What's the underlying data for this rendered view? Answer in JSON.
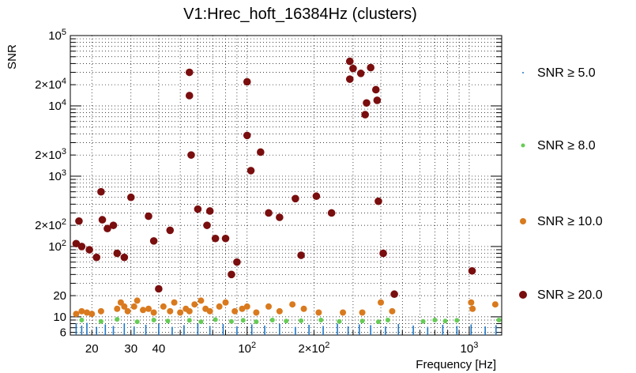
{
  "chart_data": {
    "type": "scatter",
    "title": "V1:Hrec_hoft_16384Hz (clusters)",
    "xlabel": "Frequency [Hz]",
    "ylabel": "SNR",
    "xscale": "log",
    "yscale": "log",
    "xlim": [
      16,
      1400
    ],
    "ylim": [
      5.5,
      100000
    ],
    "grid": true,
    "legend_position": "right",
    "x_ticks": [
      {
        "value": 20,
        "label": "20"
      },
      {
        "value": 30,
        "label": "30"
      },
      {
        "value": 40,
        "label": "40"
      },
      {
        "value": 100,
        "label": "10^2"
      },
      {
        "value": 200,
        "label": "2×10^2"
      },
      {
        "value": 1000,
        "label": "10^3"
      }
    ],
    "y_ticks": [
      {
        "value": 6,
        "label": "6"
      },
      {
        "value": 10,
        "label": "10"
      },
      {
        "value": 20,
        "label": "20"
      },
      {
        "value": 100,
        "label": "10^2"
      },
      {
        "value": 200,
        "label": "2×10^2"
      },
      {
        "value": 1000,
        "label": "10^3"
      },
      {
        "value": 2000,
        "label": "2×10^3"
      },
      {
        "value": 10000,
        "label": "10^4"
      },
      {
        "value": 20000,
        "label": "2×10^4"
      },
      {
        "value": 100000,
        "label": "10^5"
      }
    ],
    "series": [
      {
        "name": "SNR ≥ 5.0",
        "color": "#1f77c8",
        "marker": "dot",
        "points": [
          [
            17,
            8
          ],
          [
            18,
            7.5
          ],
          [
            19,
            8.2
          ],
          [
            21,
            7.2
          ],
          [
            23,
            7.8
          ],
          [
            25,
            7.4
          ],
          [
            28,
            8.1
          ],
          [
            31,
            7.3
          ],
          [
            35,
            7.7
          ],
          [
            40,
            7.9
          ],
          [
            46,
            7.2
          ],
          [
            52,
            7.6
          ],
          [
            60,
            8
          ],
          [
            68,
            7.4
          ],
          [
            78,
            7.9
          ],
          [
            90,
            7.3
          ],
          [
            105,
            7.8
          ],
          [
            120,
            7.5
          ],
          [
            140,
            7.9
          ],
          [
            165,
            7.2
          ],
          [
            190,
            7.7
          ],
          [
            220,
            7.4
          ],
          [
            255,
            8
          ],
          [
            285,
            7.3
          ],
          [
            320,
            7.8
          ],
          [
            360,
            7.6
          ],
          [
            420,
            7.3
          ],
          [
            480,
            7.9
          ],
          [
            560,
            7.5
          ],
          [
            650,
            7.2
          ],
          [
            760,
            7.7
          ],
          [
            880,
            7.4
          ],
          [
            1020,
            7.8
          ],
          [
            1180,
            7.3
          ],
          [
            1320,
            7.6
          ]
        ]
      },
      {
        "name": "SNR ≥ 8.0",
        "color": "#66cc55",
        "marker": "circle",
        "points": [
          [
            18,
            9
          ],
          [
            22,
            8.6
          ],
          [
            26,
            9.2
          ],
          [
            32,
            8.5
          ],
          [
            38,
            9
          ],
          [
            44,
            8.7
          ],
          [
            55,
            8.9
          ],
          [
            62,
            8.5
          ],
          [
            72,
            9.1
          ],
          [
            85,
            8.6
          ],
          [
            96,
            8.9
          ],
          [
            110,
            8.5
          ],
          [
            130,
            9
          ],
          [
            150,
            8.7
          ],
          [
            175,
            8.8
          ],
          [
            215,
            9
          ],
          [
            260,
            8.6
          ],
          [
            330,
            8.7
          ],
          [
            390,
            8.5
          ],
          [
            430,
            9
          ],
          [
            620,
            8.6
          ],
          [
            700,
            9
          ],
          [
            780,
            8.7
          ],
          [
            880,
            8.9
          ],
          [
            1360,
            9
          ]
        ]
      },
      {
        "name": "SNR ≥ 10.0",
        "color": "#d97a1e",
        "marker": "circle",
        "points": [
          [
            17,
            11
          ],
          [
            18,
            12
          ],
          [
            19,
            11.5
          ],
          [
            20,
            11
          ],
          [
            22,
            12
          ],
          [
            26,
            13
          ],
          [
            27,
            16
          ],
          [
            28,
            14
          ],
          [
            29,
            12
          ],
          [
            31,
            14
          ],
          [
            32,
            17
          ],
          [
            34,
            12.5
          ],
          [
            36,
            13
          ],
          [
            38,
            11.5
          ],
          [
            42,
            14
          ],
          [
            45,
            12
          ],
          [
            47,
            16
          ],
          [
            50,
            11.5
          ],
          [
            53,
            13
          ],
          [
            55,
            12
          ],
          [
            58,
            15
          ],
          [
            62,
            17
          ],
          [
            65,
            13
          ],
          [
            68,
            12
          ],
          [
            75,
            14
          ],
          [
            80,
            16
          ],
          [
            88,
            12
          ],
          [
            95,
            13
          ],
          [
            100,
            14
          ],
          [
            110,
            11.5
          ],
          [
            125,
            14
          ],
          [
            140,
            12
          ],
          [
            160,
            15
          ],
          [
            180,
            13
          ],
          [
            210,
            11.5
          ],
          [
            270,
            11.5
          ],
          [
            330,
            11.5
          ],
          [
            400,
            16
          ],
          [
            450,
            12
          ],
          [
            1020,
            16
          ],
          [
            1035,
            13
          ],
          [
            1310,
            15
          ]
        ]
      },
      {
        "name": "SNR ≥ 20.0",
        "color": "#7a0e0e",
        "marker": "circle",
        "points": [
          [
            17,
            110
          ],
          [
            17.5,
            230
          ],
          [
            18,
            100
          ],
          [
            19.5,
            90
          ],
          [
            21,
            70
          ],
          [
            22,
            600
          ],
          [
            22.3,
            240
          ],
          [
            23.5,
            180
          ],
          [
            25,
            200
          ],
          [
            26,
            80
          ],
          [
            28,
            70
          ],
          [
            30,
            500
          ],
          [
            36,
            270
          ],
          [
            38,
            120
          ],
          [
            40,
            25
          ],
          [
            45,
            170
          ],
          [
            55,
            30000
          ],
          [
            55,
            14000
          ],
          [
            56,
            2000
          ],
          [
            60,
            340
          ],
          [
            66,
            200
          ],
          [
            68,
            320
          ],
          [
            72,
            130
          ],
          [
            80,
            130
          ],
          [
            85,
            40
          ],
          [
            90,
            60
          ],
          [
            100,
            3800
          ],
          [
            100,
            22000
          ],
          [
            104,
            1200
          ],
          [
            115,
            2200
          ],
          [
            125,
            300
          ],
          [
            140,
            260
          ],
          [
            165,
            480
          ],
          [
            175,
            75
          ],
          [
            205,
            520
          ],
          [
            240,
            300
          ],
          [
            290,
            43000
          ],
          [
            290,
            24000
          ],
          [
            300,
            34000
          ],
          [
            325,
            29000
          ],
          [
            340,
            7500
          ],
          [
            345,
            11000
          ],
          [
            360,
            35000
          ],
          [
            380,
            17000
          ],
          [
            385,
            12000
          ],
          [
            390,
            440
          ],
          [
            410,
            80
          ],
          [
            460,
            21
          ],
          [
            1030,
            45
          ]
        ]
      }
    ],
    "legend": [
      {
        "label": "SNR ≥ 5.0"
      },
      {
        "label": "SNR ≥ 8.0"
      },
      {
        "label": "SNR ≥ 10.0"
      },
      {
        "label": "SNR ≥ 20.0"
      }
    ]
  }
}
